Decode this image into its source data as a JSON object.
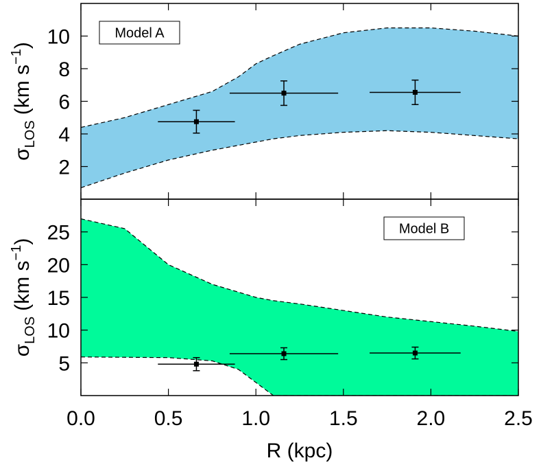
{
  "chart_data": [
    {
      "type": "band",
      "ylabel_symbol": "σ",
      "ylabel_sub": "LOS",
      "ylabel_unit": "(km s",
      "ylabel_sup": "−1",
      "ylabel_close": ")",
      "series": [
        {
          "name": "Model A",
          "color": "#87ceeb",
          "x": [
            0,
            0.25,
            0.5,
            0.75,
            0.9,
            1.0,
            1.1,
            1.25,
            1.5,
            1.75,
            2.0,
            2.25,
            2.5
          ],
          "lower": [
            0.7,
            1.6,
            2.4,
            3.0,
            3.3,
            3.5,
            3.7,
            3.9,
            4.1,
            4.2,
            4.1,
            3.9,
            3.7
          ],
          "upper": [
            4.4,
            5.0,
            5.8,
            6.6,
            7.5,
            8.3,
            8.8,
            9.5,
            10.2,
            10.5,
            10.5,
            10.3,
            10.0
          ]
        }
      ],
      "points": {
        "x": [
          0.66,
          1.16,
          1.91
        ],
        "y": [
          4.75,
          6.5,
          6.55
        ],
        "xerr": [
          0.22,
          0.31,
          0.26
        ],
        "yerr": [
          0.7,
          0.75,
          0.75
        ]
      },
      "xlim": [
        0,
        2.5
      ],
      "ylim": [
        0,
        12
      ],
      "yticks": [
        2,
        4,
        6,
        8,
        10
      ],
      "legend": "upper left"
    },
    {
      "type": "band",
      "ylabel_symbol": "σ",
      "ylabel_sub": "LOS",
      "ylabel_unit": "(km s",
      "ylabel_sup": "−1",
      "ylabel_close": ")",
      "xlabel": "R (kpc)",
      "series": [
        {
          "name": "Model B",
          "color": "#00fa9a",
          "x": [
            0,
            0.25,
            0.5,
            0.75,
            0.9,
            1.0,
            1.1,
            1.25,
            1.5,
            1.75,
            2.0,
            2.25,
            2.5
          ],
          "lower": [
            5.9,
            5.85,
            5.8,
            5.3,
            4.0,
            2.0,
            0,
            0,
            0,
            0,
            0,
            0,
            0
          ],
          "upper": [
            27,
            25.5,
            20,
            17,
            15.8,
            15,
            14.5,
            14,
            13,
            12,
            11.3,
            10.6,
            9.8
          ]
        }
      ],
      "points": {
        "x": [
          0.66,
          1.16,
          1.91
        ],
        "y": [
          4.8,
          6.4,
          6.5
        ],
        "xerr": [
          0.22,
          0.31,
          0.26
        ],
        "yerr": [
          1.0,
          0.9,
          0.9
        ]
      },
      "xlim": [
        0,
        2.5
      ],
      "ylim": [
        0,
        30
      ],
      "yticks": [
        5,
        10,
        15,
        20,
        25
      ],
      "xticks": [
        {
          "value": 0,
          "label": "0.0"
        },
        0.5,
        {
          "value": 1,
          "label": "1.0"
        },
        1.5,
        {
          "value": 2,
          "label": "2.0"
        },
        2.5
      ],
      "legend": "upper right"
    }
  ]
}
